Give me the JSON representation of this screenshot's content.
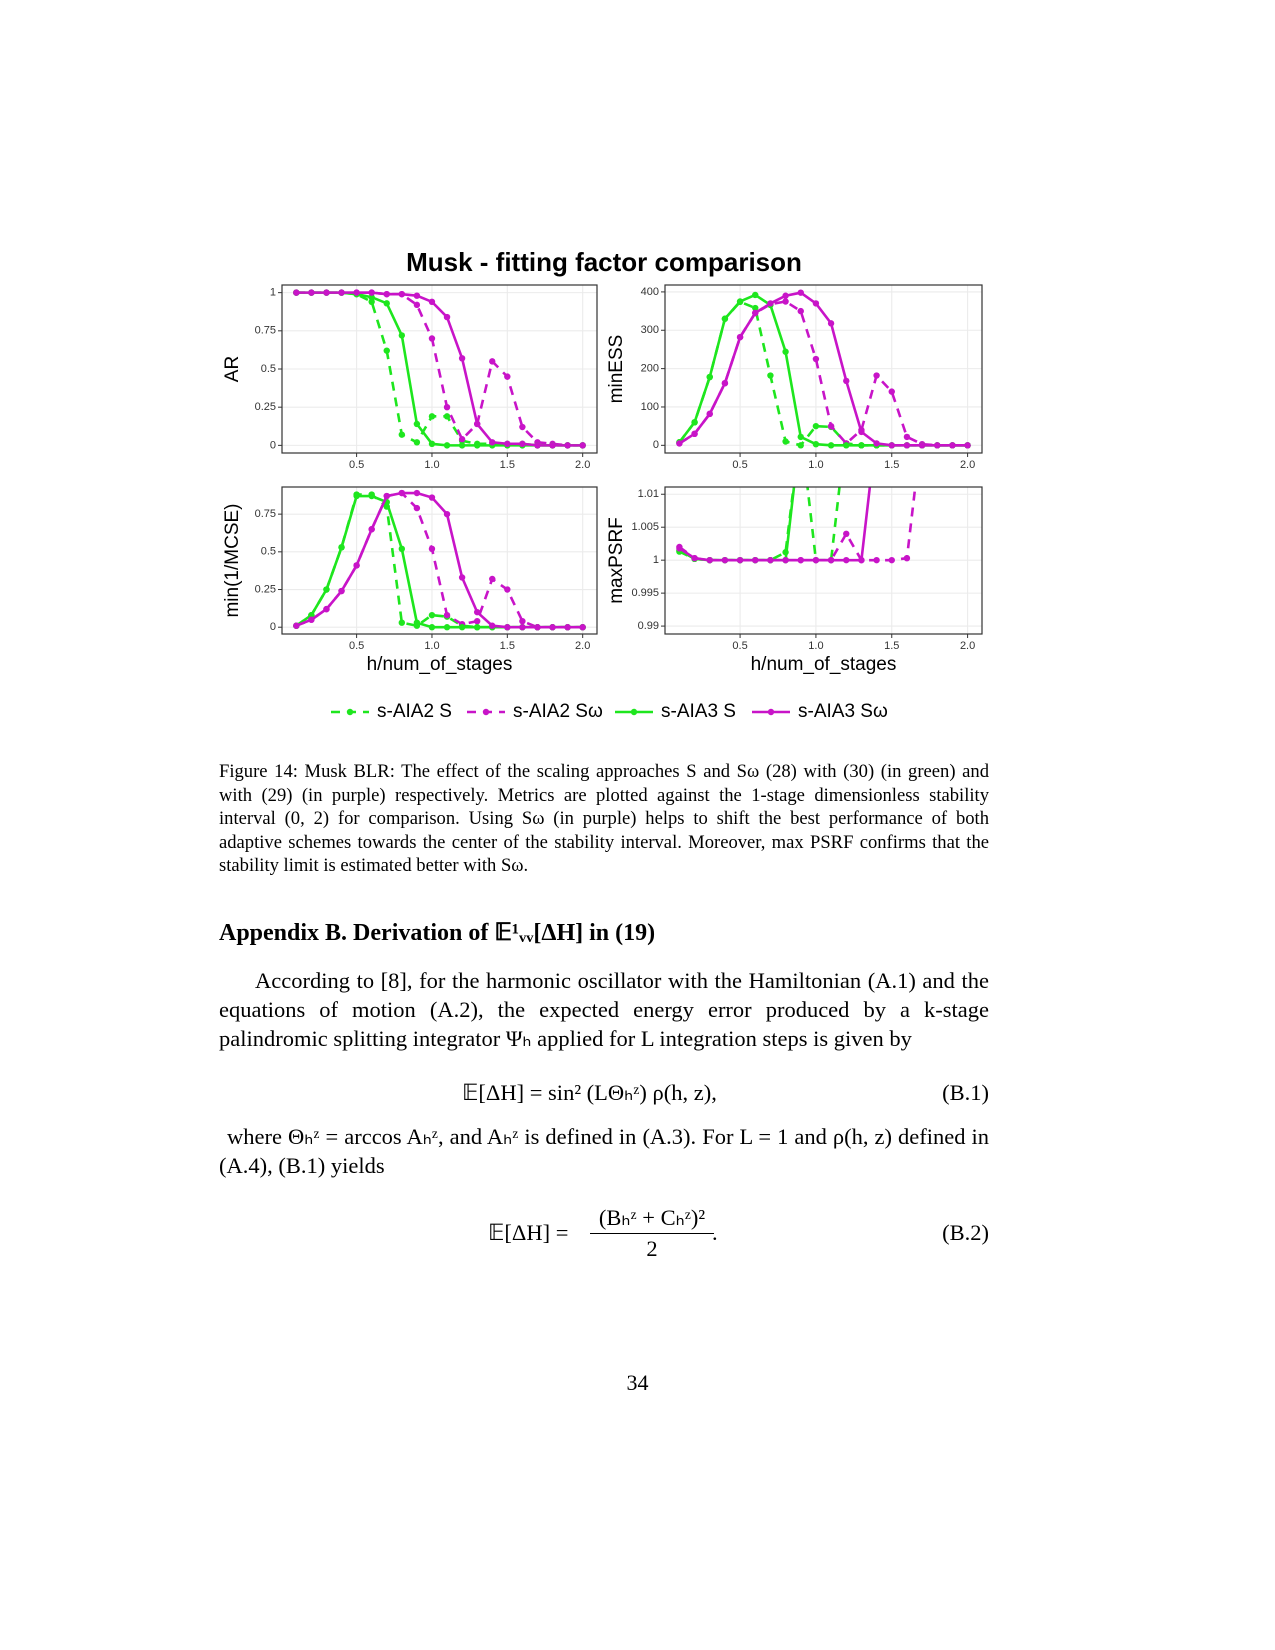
{
  "figure": {
    "title": "Musk - fitting factor comparison",
    "caption": "Figure 14: Musk BLR: The effect of the scaling approaches S and Sω (28) with (30) (in green) and with (29) (in purple) respectively. Metrics are plotted against the 1-stage dimensionless stability interval (0, 2) for comparison. Using Sω (in purple) helps to shift the best performance of both adaptive schemes towards the center of the stability interval. Moreover, max PSRF confirms that the stability limit is estimated better with Sω."
  },
  "chart_data": [
    {
      "type": "line",
      "ylabel": "AR",
      "grid": true,
      "x": [
        0.1,
        0.2,
        0.3,
        0.4,
        0.5,
        0.6,
        0.7,
        0.8,
        0.9,
        1.0,
        1.1,
        1.2,
        1.3,
        1.4,
        1.5,
        1.6,
        1.7,
        1.8,
        1.9,
        2.0
      ],
      "xlim": [
        0.005,
        2.095
      ],
      "xticks": [
        0.5,
        {
          "value": 1,
          "label": "1.0"
        },
        1.5,
        {
          "value": 2,
          "label": "2.0"
        }
      ],
      "ylim": [
        -0.05,
        1.05
      ],
      "yticks": [
        0,
        0.25,
        0.5,
        0.75,
        1
      ],
      "series": [
        {
          "name": "s-AIA2 S",
          "color": "#1ee61e",
          "linestyle": "dashed",
          "values": [
            1,
            1,
            1,
            1,
            0.99,
            0.94,
            0.62,
            0.07,
            0.02,
            0.19,
            0.19,
            0.03,
            0.01,
            0.01,
            0.01,
            0.01,
            0,
            0,
            0,
            0
          ]
        },
        {
          "name": "s-AIA2 Sω",
          "color": "#c814c8",
          "linestyle": "dashed",
          "values": [
            1,
            1,
            1,
            1,
            1,
            1,
            0.99,
            0.99,
            0.92,
            0.7,
            0.25,
            0.04,
            0.14,
            0.55,
            0.45,
            0.12,
            0.02,
            0.01,
            0,
            0
          ]
        },
        {
          "name": "s-AIA3 S",
          "color": "#1ee61e",
          "linestyle": "solid",
          "values": [
            1,
            1,
            1,
            1,
            0.99,
            0.97,
            0.93,
            0.72,
            0.14,
            0.01,
            0,
            0,
            0,
            0,
            0,
            0,
            0,
            0,
            0,
            0
          ]
        },
        {
          "name": "s-AIA3 Sω",
          "color": "#c814c8",
          "linestyle": "solid",
          "values": [
            1,
            1,
            1,
            1,
            1,
            1,
            0.99,
            0.99,
            0.98,
            0.94,
            0.84,
            0.57,
            0.14,
            0.02,
            0.01,
            0.01,
            0,
            0,
            0,
            0
          ]
        }
      ]
    },
    {
      "type": "line",
      "ylabel": "minESS",
      "grid": true,
      "x": [
        0.1,
        0.2,
        0.3,
        0.4,
        0.5,
        0.6,
        0.7,
        0.8,
        0.9,
        1.0,
        1.1,
        1.2,
        1.3,
        1.4,
        1.5,
        1.6,
        1.7,
        1.8,
        1.9,
        2.0
      ],
      "xlim": [
        0.005,
        2.095
      ],
      "xticks": [
        0.5,
        {
          "value": 1,
          "label": "1.0"
        },
        1.5,
        {
          "value": 2,
          "label": "2.0"
        }
      ],
      "ylim": [
        -20,
        418
      ],
      "yticks": [
        0,
        100,
        200,
        300,
        400
      ],
      "series": [
        {
          "name": "s-AIA2 S",
          "color": "#1ee61e",
          "linestyle": "dashed",
          "values": [
            8,
            60,
            178,
            330,
            374,
            358,
            182,
            10,
            0,
            50,
            48,
            5,
            0,
            0,
            0,
            0,
            0,
            0,
            0,
            0
          ]
        },
        {
          "name": "s-AIA2 Sω",
          "color": "#c814c8",
          "linestyle": "dashed",
          "values": [
            5,
            30,
            82,
            162,
            282,
            345,
            368,
            375,
            350,
            225,
            50,
            5,
            40,
            182,
            140,
            22,
            3,
            0,
            0,
            0
          ]
        },
        {
          "name": "s-AIA3 S",
          "color": "#1ee61e",
          "linestyle": "solid",
          "values": [
            8,
            60,
            178,
            330,
            375,
            392,
            366,
            244,
            22,
            3,
            0,
            0,
            0,
            0,
            0,
            0,
            0,
            0,
            0,
            0
          ]
        },
        {
          "name": "s-AIA3 Sω",
          "color": "#c814c8",
          "linestyle": "solid",
          "values": [
            5,
            30,
            82,
            162,
            282,
            345,
            370,
            390,
            398,
            370,
            318,
            168,
            35,
            5,
            0,
            0,
            0,
            0,
            0,
            0
          ]
        }
      ]
    },
    {
      "type": "line",
      "ylabel": "min(1/MCSE)",
      "xlabel": "h/num_of_stages",
      "grid": true,
      "x": [
        0.1,
        0.2,
        0.3,
        0.4,
        0.5,
        0.6,
        0.7,
        0.8,
        0.9,
        1.0,
        1.1,
        1.2,
        1.3,
        1.4,
        1.5,
        1.6,
        1.7,
        1.8,
        1.9,
        2.0
      ],
      "xlim": [
        0.005,
        2.095
      ],
      "xticks": [
        0.5,
        {
          "value": 1,
          "label": "1.0"
        },
        1.5,
        {
          "value": 2,
          "label": "2.0"
        }
      ],
      "ylim": [
        -0.045,
        0.93
      ],
      "yticks": [
        0,
        0.25,
        0.5,
        0.75
      ],
      "series": [
        {
          "name": "s-AIA2 S",
          "color": "#1ee61e",
          "linestyle": "dashed",
          "values": [
            0.01,
            0.08,
            0.25,
            0.53,
            0.88,
            0.88,
            0.8,
            0.03,
            0.01,
            0.08,
            0.07,
            0.01,
            0,
            0,
            0,
            0,
            0,
            0,
            0,
            0
          ]
        },
        {
          "name": "s-AIA2 Sω",
          "color": "#c814c8",
          "linestyle": "dashed",
          "values": [
            0.01,
            0.05,
            0.12,
            0.24,
            0.41,
            0.65,
            0.87,
            0.89,
            0.79,
            0.52,
            0.08,
            0.02,
            0.04,
            0.32,
            0.25,
            0.04,
            0,
            0,
            0,
            0
          ]
        },
        {
          "name": "s-AIA3 S",
          "color": "#1ee61e",
          "linestyle": "solid",
          "values": [
            0.01,
            0.08,
            0.25,
            0.53,
            0.87,
            0.87,
            0.83,
            0.52,
            0.03,
            0,
            0,
            0,
            0,
            0,
            0,
            0,
            0,
            0,
            0,
            0
          ]
        },
        {
          "name": "s-AIA3 Sω",
          "color": "#c814c8",
          "linestyle": "solid",
          "values": [
            0.01,
            0.05,
            0.12,
            0.24,
            0.41,
            0.65,
            0.87,
            0.89,
            0.89,
            0.86,
            0.75,
            0.33,
            0.1,
            0.01,
            0,
            0,
            0,
            0,
            0,
            0
          ]
        }
      ]
    },
    {
      "type": "line",
      "ylabel": "maxPSRF",
      "xlabel": "h/num_of_stages",
      "grid": true,
      "x": [
        0.1,
        0.2,
        0.3,
        0.4,
        0.5,
        0.6,
        0.7,
        0.8,
        0.9,
        1.0,
        1.1,
        1.2,
        1.3,
        1.4,
        1.5,
        1.6,
        1.7,
        1.8,
        1.9,
        2.0
      ],
      "xlim": [
        0.005,
        2.095
      ],
      "xticks": [
        0.5,
        {
          "value": 1,
          "label": "1.0"
        },
        1.5,
        {
          "value": 2,
          "label": "2.0"
        }
      ],
      "ylim": [
        0.9888,
        1.0111
      ],
      "yticks": [
        0.99,
        0.995,
        1,
        1.005,
        1.01
      ],
      "series": [
        {
          "name": "s-AIA2 S",
          "color": "#1ee61e",
          "linestyle": "dashed",
          "values": [
            1.0013,
            1.0002,
            1,
            1,
            1,
            1,
            1,
            1.0012,
            1.02,
            1,
            1,
            1.02,
            null,
            null,
            null,
            null,
            null,
            null,
            null,
            null
          ]
        },
        {
          "name": "s-AIA2 Sω",
          "color": "#c814c8",
          "linestyle": "dashed",
          "values": [
            1.002,
            1.0003,
            1,
            1,
            1,
            1,
            1,
            1,
            1,
            1,
            1,
            1.004,
            1,
            1,
            1,
            1.0003,
            1.02,
            null,
            null,
            null
          ]
        },
        {
          "name": "s-AIA3 S",
          "color": "#1ee61e",
          "linestyle": "solid",
          "values": [
            1.0015,
            1.0002,
            1,
            1,
            1,
            1,
            1,
            1,
            1.02,
            null,
            null,
            null,
            null,
            null,
            null,
            null,
            null,
            null,
            null,
            null
          ]
        },
        {
          "name": "s-AIA3 Sω",
          "color": "#c814c8",
          "linestyle": "solid",
          "values": [
            1.0018,
            1.0003,
            1,
            1,
            1,
            1,
            1,
            1,
            1,
            1,
            1,
            1,
            1,
            1.02,
            null,
            null,
            null,
            null,
            null,
            null
          ]
        }
      ]
    }
  ],
  "appendix": {
    "heading": "Appendix B. Derivation of 𝔼¹ᵥᵥ[ΔH] in (19)",
    "paragraph1": "According to [8], for the harmonic oscillator with the Hamiltonian (A.1) and the equations of motion (A.2), the expected energy error produced by a k-stage palindromic splitting integrator Ψₕ applied for L integration steps is given by",
    "equation1": "𝔼[ΔH] = sin² (LΘₕᶻ) ρ(h, z),",
    "equation1_number": "(B.1)",
    "paragraph2": "where Θₕᶻ = arccos Aₕᶻ, and Aₕᶻ is defined in (A.3). For L = 1 and ρ(h, z) defined in (A.4), (B.1) yields",
    "equation2_lhs": "𝔼[ΔH] =",
    "equation2_numerator": "(Bₕᶻ + Cₕᶻ)²",
    "equation2_denominator": "2",
    "equation2_end": ".",
    "equation2_number": "(B.2)"
  },
  "page_number": "34"
}
